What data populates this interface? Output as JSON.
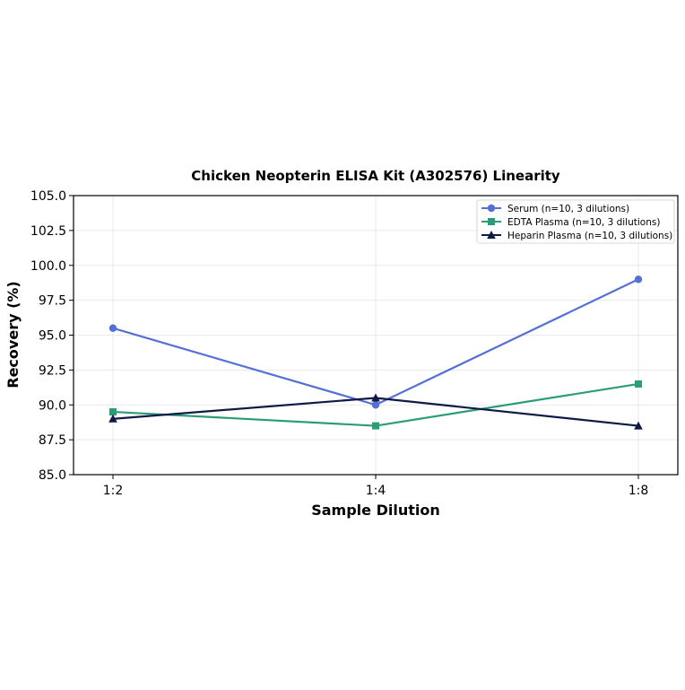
{
  "chart_data": {
    "type": "line",
    "title": "Chicken Neopterin ELISA Kit (A302576) Linearity",
    "xlabel": "Sample Dilution",
    "ylabel": "Recovery (%)",
    "categories": [
      "1:2",
      "1:4",
      "1:8"
    ],
    "ylim": [
      85.0,
      105.0
    ],
    "yticks": [
      "85.0",
      "87.5",
      "90.0",
      "92.5",
      "95.0",
      "97.5",
      "100.0",
      "102.5",
      "105.0"
    ],
    "grid": true,
    "legend_position": "top-right",
    "series": [
      {
        "name": "Serum (n=10, 3 dilutions)",
        "values": [
          95.5,
          90.0,
          99.0
        ],
        "color": "#5470d6",
        "marker": "circle"
      },
      {
        "name": "EDTA Plasma (n=10, 3 dilutions)",
        "values": [
          89.5,
          88.5,
          91.5
        ],
        "color": "#2a9d78",
        "marker": "square"
      },
      {
        "name": "Heparin Plasma (n=10, 3 dilutions)",
        "values": [
          89.0,
          90.5,
          88.5
        ],
        "color": "#0f1a45",
        "marker": "triangle"
      }
    ]
  }
}
